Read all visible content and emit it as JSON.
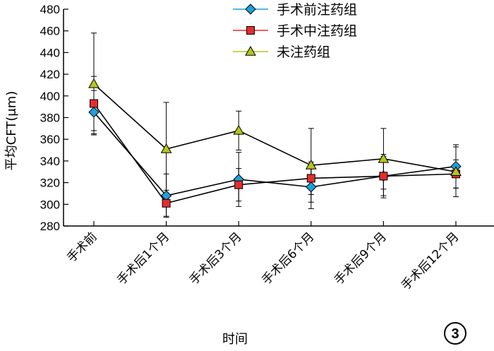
{
  "chart_data": {
    "type": "line",
    "xlabel": "时间",
    "ylabel": "平均CFT(μm)",
    "ylim": [
      280,
      480
    ],
    "yticks": [
      280,
      300,
      320,
      340,
      360,
      380,
      400,
      420,
      440,
      460,
      480
    ],
    "categories": [
      "手术前",
      "手术后1个月",
      "手术后3个月",
      "手术后6个月",
      "手术后9个月",
      "手术后12个月"
    ],
    "grid": false,
    "legend_position": "top-right",
    "panel_label": "3",
    "series": [
      {
        "name": "手术前注药组",
        "marker": "diamond",
        "color": "#1ea0dc",
        "values": [
          385,
          308,
          323,
          316,
          326,
          335
        ],
        "error": [
          20,
          20,
          25,
          20,
          20,
          20
        ]
      },
      {
        "name": "手术中注药组",
        "marker": "square",
        "color": "#e32d2d",
        "values": [
          393,
          301,
          318,
          324,
          326,
          328
        ],
        "error": [
          25,
          12,
          15,
          15,
          18,
          13
        ]
      },
      {
        "name": "未注药组",
        "marker": "triangle",
        "color": "#b5c51a",
        "values": [
          411,
          351,
          368,
          336,
          342,
          330
        ],
        "error": [
          47,
          43,
          18,
          34,
          28,
          23
        ]
      }
    ]
  }
}
